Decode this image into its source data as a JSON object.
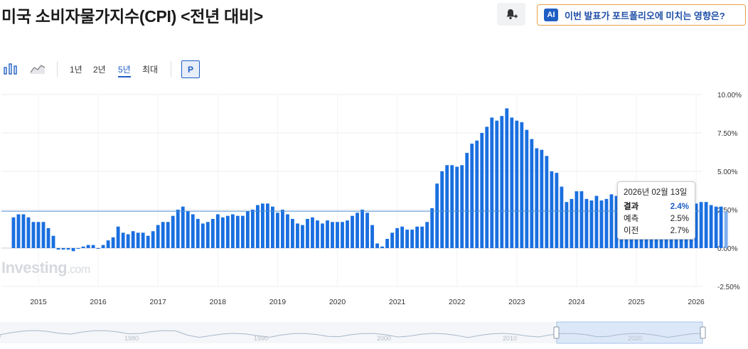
{
  "header": {
    "title": "미국 소비자물가지수(CPI) <전년 대비>",
    "ai_badge": "AI",
    "ai_prompt": "이번 발표가 포트폴리오에 미치는 영향은?"
  },
  "toolbar": {
    "ranges": [
      "1년",
      "2년",
      "5년",
      "최대"
    ],
    "active_range": "5년",
    "p_label": "P"
  },
  "tooltip": {
    "date": "2026년 02월 13일",
    "actual_label": "결과",
    "actual_value": "2.4%",
    "forecast_label": "예측",
    "forecast_value": "2.5%",
    "previous_label": "이전",
    "previous_value": "2.7%"
  },
  "watermark": {
    "brand": "Investing",
    "suffix": ".com"
  },
  "colors": {
    "bar": "#1a6fe0",
    "accent": "#1f5fc4",
    "reference_line": "#4a8fd6"
  },
  "chart_data": {
    "type": "bar",
    "title": "미국 소비자물가지수(CPI) <전년 대비>",
    "ylim": [
      -2.5,
      10.0
    ],
    "y_ticks": [
      "10.00%",
      "7.50%",
      "5.00%",
      "2.50%",
      "0.00%",
      "-2.50%"
    ],
    "x_ticks": [
      "2015",
      "2016",
      "2017",
      "2018",
      "2019",
      "2020",
      "2021",
      "2022",
      "2023",
      "2024",
      "2025",
      "2026"
    ],
    "reference_line": 2.4,
    "grid": true,
    "series": [
      {
        "start": "2014-08",
        "values": [
          2.0,
          2.2,
          2.2,
          2.0,
          1.7,
          1.7,
          1.7,
          1.3,
          0.8,
          -0.1,
          -0.1,
          -0.1,
          -0.2,
          0.0,
          0.1,
          0.2,
          0.2,
          0.0,
          0.2,
          0.5,
          0.7,
          1.4,
          1.0,
          0.9,
          1.1,
          1.0,
          1.0,
          0.8,
          1.1,
          1.5,
          1.7,
          1.7,
          2.1,
          2.5,
          2.7,
          2.4,
          2.2,
          1.9,
          1.6,
          1.7,
          1.9,
          2.2,
          2.0,
          2.1,
          2.2,
          2.1,
          2.1,
          2.4,
          2.5,
          2.8,
          2.9,
          2.9,
          2.7,
          2.3,
          2.5,
          2.2,
          1.9,
          1.6,
          1.5,
          1.9,
          2.0,
          1.8,
          1.6,
          1.8,
          1.7,
          1.7,
          1.7,
          1.8,
          2.1,
          2.3,
          2.5,
          2.3,
          1.5,
          0.3,
          0.1,
          0.6,
          1.0,
          1.3,
          1.4,
          1.2,
          1.2,
          1.4,
          1.4,
          1.7,
          2.6,
          4.2,
          5.0,
          5.4,
          5.4,
          5.3,
          5.4,
          6.2,
          6.8,
          7.0,
          7.5,
          7.9,
          8.5,
          8.3,
          8.6,
          9.1,
          8.5,
          8.3,
          8.2,
          7.7,
          7.1,
          6.5,
          6.4,
          6.0,
          5.0,
          4.9,
          4.0,
          3.0,
          3.2,
          3.7,
          3.7,
          3.2,
          3.1,
          3.4,
          3.1,
          3.2,
          3.5,
          3.4,
          3.3,
          3.0,
          2.9,
          2.5,
          2.4,
          2.6,
          2.7,
          2.9,
          3.0,
          2.8,
          2.4,
          2.3,
          2.4,
          2.7,
          2.7,
          2.9,
          3.0,
          3.0,
          2.8,
          2.7,
          2.7,
          2.4
        ]
      }
    ],
    "navigator_labels": [
      "1980",
      "1990",
      "2000",
      "2010",
      "2020"
    ]
  }
}
